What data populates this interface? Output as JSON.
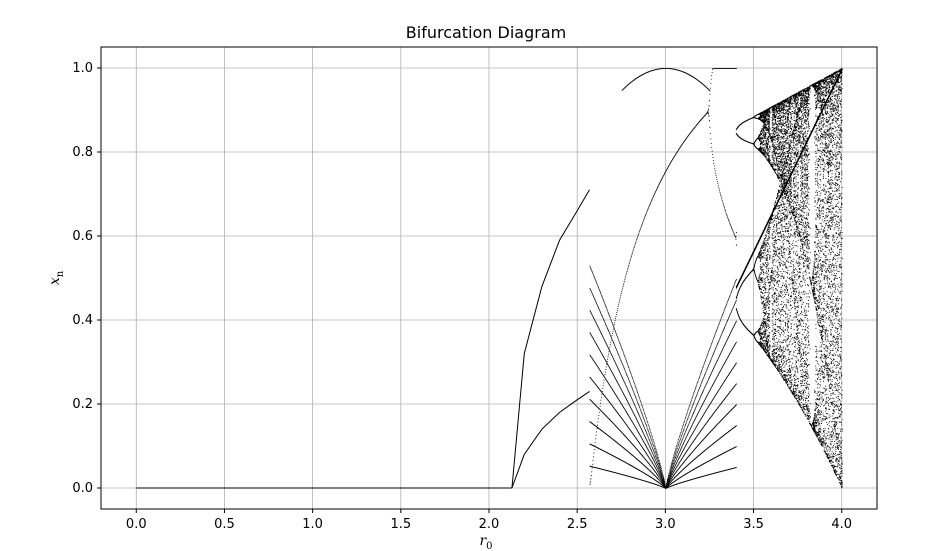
{
  "chart_data": {
    "type": "scatter",
    "title": "Bifurcation Diagram",
    "xlabel": {
      "base": "r",
      "sub": "0"
    },
    "ylabel": {
      "base": "x",
      "sub": "n"
    },
    "xlim": [
      -0.2,
      4.2
    ],
    "ylim": [
      -0.05,
      1.05
    ],
    "xticks": [
      0.0,
      0.5,
      1.0,
      1.5,
      2.0,
      2.5,
      3.0,
      3.5,
      4.0
    ],
    "xtick_labels": [
      "0.0",
      "0.5",
      "1.0",
      "1.5",
      "2.0",
      "2.5",
      "3.0",
      "3.5",
      "4.0"
    ],
    "yticks": [
      0.0,
      0.2,
      0.4,
      0.6,
      0.8,
      1.0
    ],
    "ytick_labels": [
      "0.0",
      "0.2",
      "0.4",
      "0.6",
      "0.8",
      "1.0"
    ],
    "grid": true,
    "marker_color": "#000000",
    "series": [
      {
        "values_description_x_range": [
          0.0,
          4.0
        ],
        "stable_zero_until": 2.13,
        "upper_branch": [
          [
            2.13,
            0.0
          ],
          [
            2.2,
            0.32
          ],
          [
            2.3,
            0.48
          ],
          [
            2.4,
            0.59
          ],
          [
            2.5,
            0.66
          ],
          [
            2.57,
            0.71
          ]
        ],
        "lower_branch": [
          [
            2.13,
            0.0
          ],
          [
            2.2,
            0.08
          ],
          [
            2.3,
            0.14
          ],
          [
            2.4,
            0.18
          ],
          [
            2.5,
            0.21
          ],
          [
            2.57,
            0.23
          ]
        ],
        "chaotic_region": [
          3.4,
          4.0
        ]
      }
    ]
  }
}
